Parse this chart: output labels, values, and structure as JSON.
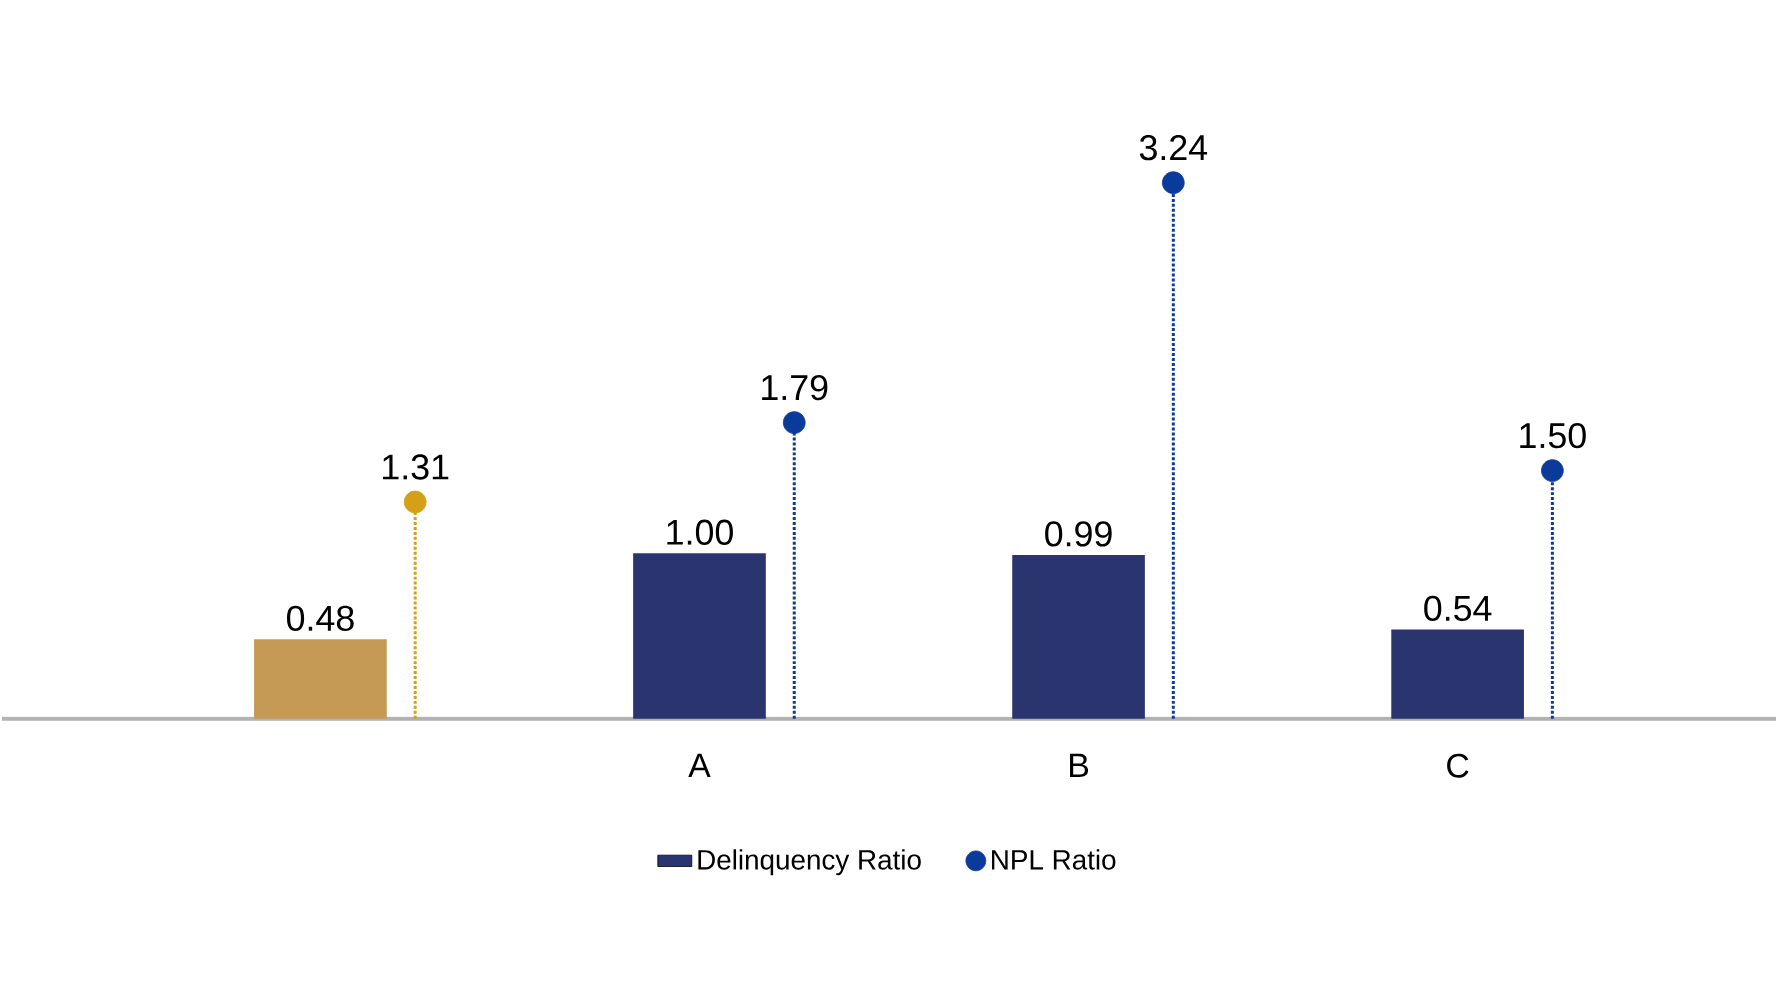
{
  "chart_data": {
    "type": "bar",
    "categories": [
      null,
      "A",
      "B",
      "C"
    ],
    "series": [
      {
        "name": "Delinquency Ratio",
        "colors": [
          "#c49a55",
          "#2a3570",
          "#2a3570",
          "#2a3570"
        ],
        "values": [
          0.48,
          1.0,
          0.99,
          0.54
        ],
        "value_labels": [
          "0.48",
          "1.00",
          "0.99",
          "0.54"
        ]
      },
      {
        "name": "NPL Ratio",
        "type": "lollipop",
        "colors": [
          "#d4a017",
          "#0a3a9a",
          "#0a3a9a",
          "#0a3a9a"
        ],
        "values": [
          1.31,
          1.79,
          3.24,
          1.5
        ],
        "value_labels": [
          "1.31",
          "1.79",
          "3.24",
          "1.50"
        ],
        "line_style": "dotted"
      }
    ],
    "marker": "circle",
    "legend": "bottom"
  }
}
